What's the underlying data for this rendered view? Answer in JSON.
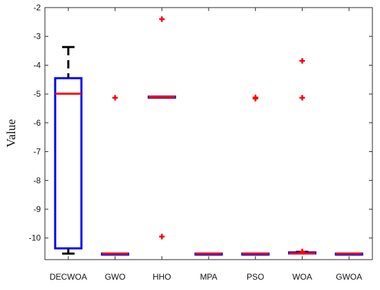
{
  "chart_data": {
    "type": "box",
    "ylabel": "Value",
    "ylim": [
      -10.75,
      -2.0
    ],
    "y_ticks": [
      -2,
      -3,
      -4,
      -5,
      -6,
      -7,
      -8,
      -9,
      -10
    ],
    "y_tick_labels": [
      "-2",
      "-3",
      "-4",
      "-5",
      "-6",
      "-7",
      "-8",
      "-9",
      "-10"
    ],
    "categories": [
      "DECWOA",
      "GWO",
      "HHO",
      "MPA",
      "PSO",
      "WOA",
      "GWOA"
    ],
    "boxes": [
      {
        "name": "DECWOA",
        "whisker_low": -10.54,
        "q1": -10.36,
        "median": -4.99,
        "q3": -4.45,
        "whisker_high": -3.37,
        "outliers": []
      },
      {
        "name": "GWO",
        "whisker_low": -10.54,
        "q1": -10.54,
        "median": -10.54,
        "q3": -10.54,
        "whisker_high": -10.54,
        "outliers": [
          -5.13
        ]
      },
      {
        "name": "HHO",
        "whisker_low": -5.12,
        "q1": -5.11,
        "median": -5.1,
        "q3": -5.09,
        "whisker_high": -5.08,
        "outliers": [
          -2.4,
          -9.95
        ]
      },
      {
        "name": "MPA",
        "whisker_low": -10.54,
        "q1": -10.54,
        "median": -10.54,
        "q3": -10.54,
        "whisker_high": -10.54,
        "outliers": []
      },
      {
        "name": "PSO",
        "whisker_low": -10.54,
        "q1": -10.54,
        "median": -10.54,
        "q3": -10.54,
        "whisker_high": -10.54,
        "outliers": [
          -5.12,
          -5.16
        ]
      },
      {
        "name": "WOA",
        "whisker_low": -10.54,
        "q1": -10.53,
        "median": -10.53,
        "q3": -10.5,
        "whisker_high": -10.48,
        "outliers": [
          -3.85,
          -5.13,
          -10.47
        ]
      },
      {
        "name": "GWOA",
        "whisker_low": -10.54,
        "q1": -10.54,
        "median": -10.54,
        "q3": -10.54,
        "whisker_high": -10.54,
        "outliers": []
      }
    ],
    "colors": {
      "box": "#0000ff",
      "median": "#ff0000",
      "whisker": "#000000",
      "outlier": "#ff0000",
      "axis": "#262626"
    },
    "grid": false
  }
}
